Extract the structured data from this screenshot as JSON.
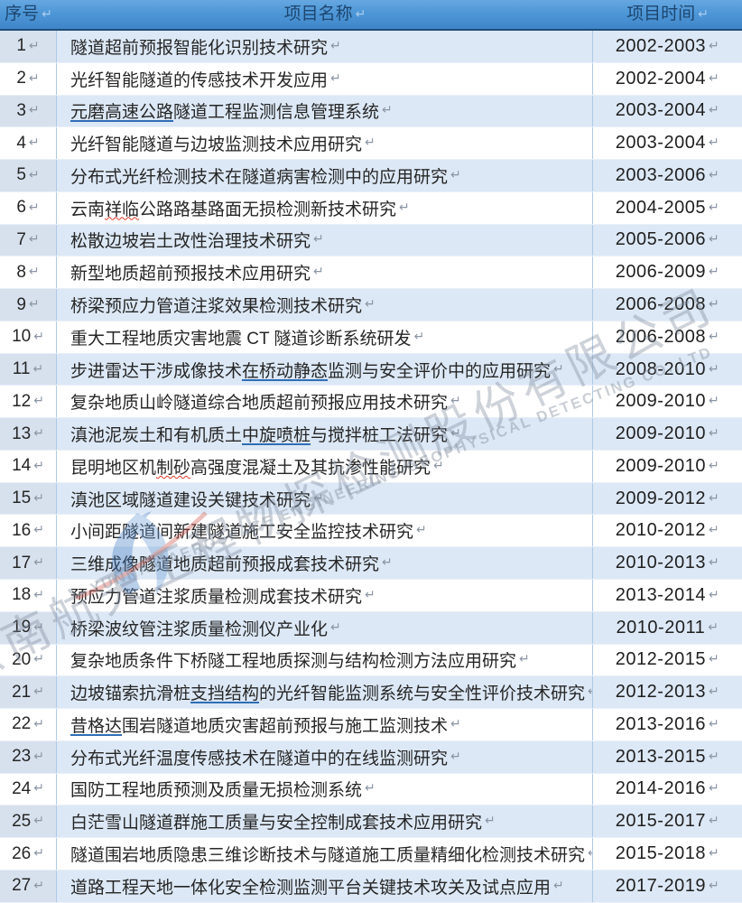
{
  "table": {
    "columns": {
      "no": "序号",
      "name": "项目名称",
      "time": "项目时间"
    },
    "rows": [
      {
        "no": "1",
        "pre": "隧道超前预报智能化识别技术研究",
        "mark": "",
        "markType": "none",
        "post": "",
        "time": "2002-2003"
      },
      {
        "no": "2",
        "pre": "光纤智能隧道的传感技术开发应用",
        "mark": "",
        "markType": "none",
        "post": "",
        "time": "2002-2004"
      },
      {
        "no": "3",
        "pre": "",
        "mark": "元磨高速公路",
        "markType": "blue",
        "post": "隧道工程监测信息管理系统",
        "time": "2003-2004"
      },
      {
        "no": "4",
        "pre": "光纤智能隧道与边坡监测技术应用研究",
        "mark": "",
        "markType": "none",
        "post": "",
        "time": "2003-2004"
      },
      {
        "no": "5",
        "pre": "分布式光纤检测技术在隧道病害检测中的应用研究",
        "mark": "",
        "markType": "none",
        "post": "",
        "time": "2003-2006"
      },
      {
        "no": "6",
        "pre": "云南",
        "mark": "祥临",
        "markType": "red",
        "post": "公路路基路面无损检测新技术研究",
        "time": "2004-2005"
      },
      {
        "no": "7",
        "pre": "松散边坡岩土改性治理技术研究",
        "mark": "",
        "markType": "none",
        "post": "",
        "time": "2005-2006"
      },
      {
        "no": "8",
        "pre": "新型地质超前预报技术应用研究",
        "mark": "",
        "markType": "none",
        "post": "",
        "time": "2006-2009"
      },
      {
        "no": "9",
        "pre": "桥梁预应力管道注浆效果检测技术研究",
        "mark": "",
        "markType": "none",
        "post": "",
        "time": "2006-2008"
      },
      {
        "no": "10",
        "pre": "重大工程地质灾害地震 CT 隧道诊断系统研发",
        "mark": "",
        "markType": "none",
        "post": "",
        "time": "2006-2008"
      },
      {
        "no": "11",
        "pre": "步进雷达干涉成像技术",
        "mark": "在桥动静态",
        "markType": "blue",
        "post": "监测与安全评价中的应用研究",
        "time": "2008-2010"
      },
      {
        "no": "12",
        "pre": "复杂地质山岭隧道综合地质超前预报应用技术研究",
        "mark": "",
        "markType": "none",
        "post": "",
        "time": "2009-2010"
      },
      {
        "no": "13",
        "pre": "滇池泥炭土和有机质土",
        "mark": "中旋喷桩",
        "markType": "blue",
        "post": "与搅拌桩工法研究",
        "time": "2009-2010"
      },
      {
        "no": "14",
        "pre": "昆明地区机",
        "mark": "制砂",
        "markType": "red",
        "post": "高强度混凝土及其抗渗性能研究",
        "time": "2009-2010"
      },
      {
        "no": "15",
        "pre": "滇池区域隧道建设关键技术研究",
        "mark": "",
        "markType": "none",
        "post": "",
        "time": "2009-2012"
      },
      {
        "no": "16",
        "pre": "小间距隧道间新建隧道施工安全监控技术研究",
        "mark": "",
        "markType": "none",
        "post": "",
        "time": "2010-2012"
      },
      {
        "no": "17",
        "pre": "三维成像隧道地质超前预报成套技术研究",
        "mark": "",
        "markType": "none",
        "post": "",
        "time": "2010-2013"
      },
      {
        "no": "18",
        "pre": "预应力管道注浆质量检测成套技术研究",
        "mark": "",
        "markType": "none",
        "post": "",
        "time": "2013-2014"
      },
      {
        "no": "19",
        "pre": "桥梁波纹管注浆质量检测仪产业化",
        "mark": "",
        "markType": "none",
        "post": "",
        "time": "2010-2011"
      },
      {
        "no": "20",
        "pre": "复杂地质条件下桥隧工程地质探测与结构检测方法应用研究",
        "mark": "",
        "markType": "none",
        "post": "",
        "time": "2012-2015"
      },
      {
        "no": "21",
        "pre": "边坡锚索抗滑桩",
        "mark": "支挡结构",
        "markType": "blue",
        "post": "的光纤智能监测系统与安全性评价技术研究",
        "time": "2012-2013"
      },
      {
        "no": "22",
        "pre": "",
        "mark": "昔格达",
        "markType": "blue",
        "post": "围岩隧道地质灾害超前预报与施工监测技术",
        "time": "2013-2016"
      },
      {
        "no": "23",
        "pre": "分布式光纤温度传感技术在隧道中的在线监测研究",
        "mark": "",
        "markType": "none",
        "post": "",
        "time": "2013-2015"
      },
      {
        "no": "24",
        "pre": "国防工程地质预测及质量无损检测系统",
        "mark": "",
        "markType": "none",
        "post": "",
        "time": "2014-2016"
      },
      {
        "no": "25",
        "pre": "白茫雪山隧道群施工质量与安全控制成套技术应用研究",
        "mark": "",
        "markType": "none",
        "post": "",
        "time": "2015-2017"
      },
      {
        "no": "26",
        "pre": "隧道围岩地质隐患三维诊断技术与隧道施工质量精细化检测技术研究",
        "mark": "",
        "markType": "none",
        "post": "",
        "time": "2015-2018"
      },
      {
        "no": "27",
        "pre": "道路工程天地一体化安全检测监测平台关键技术攻关及试点应用",
        "mark": "",
        "markType": "none",
        "post": "",
        "time": "2017-2019"
      }
    ]
  },
  "marks": {
    "pilcrow": "↵"
  },
  "watermark": {
    "cn": "云南航天工程物探检测股份有限公司",
    "en": "YUNNAN AEROSPACE ENGINEERING GEOPHYSICAL DETECTING CO.,LTD"
  },
  "colors": {
    "header_top": "#66a7e1",
    "header_bottom": "#3f86c9",
    "header_text": "#1c4670",
    "header_border": "#1f4e79",
    "row_alt_bg": "#dce8f5",
    "grid_line": "#afc9e5",
    "underline_blue": "#2f6eb5",
    "underline_red": "#e0392c",
    "watermark_gray": "#8c96a4"
  }
}
